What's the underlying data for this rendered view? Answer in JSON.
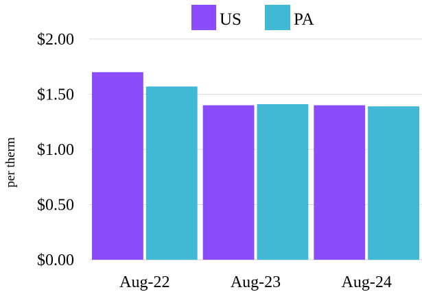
{
  "chart_data": {
    "type": "bar",
    "categories": [
      "Aug-22",
      "Aug-23",
      "Aug-24"
    ],
    "series": [
      {
        "name": "US",
        "color": "#8b4dfb",
        "values": [
          1.7,
          1.4,
          1.4
        ]
      },
      {
        "name": "PA",
        "color": "#41b8d6",
        "values": [
          1.57,
          1.41,
          1.39
        ]
      }
    ],
    "title": "",
    "xlabel": "",
    "ylabel": "per therm",
    "ylim": [
      0,
      2
    ],
    "yticks": [
      0,
      0.5,
      1,
      1.5,
      2
    ],
    "ytick_labels": [
      "$0.00",
      "$0.50",
      "$1.00",
      "$1.50",
      "$2.00"
    ],
    "grid": true,
    "gridline_color": "#d9d9d9",
    "legend_position": "top-right"
  }
}
